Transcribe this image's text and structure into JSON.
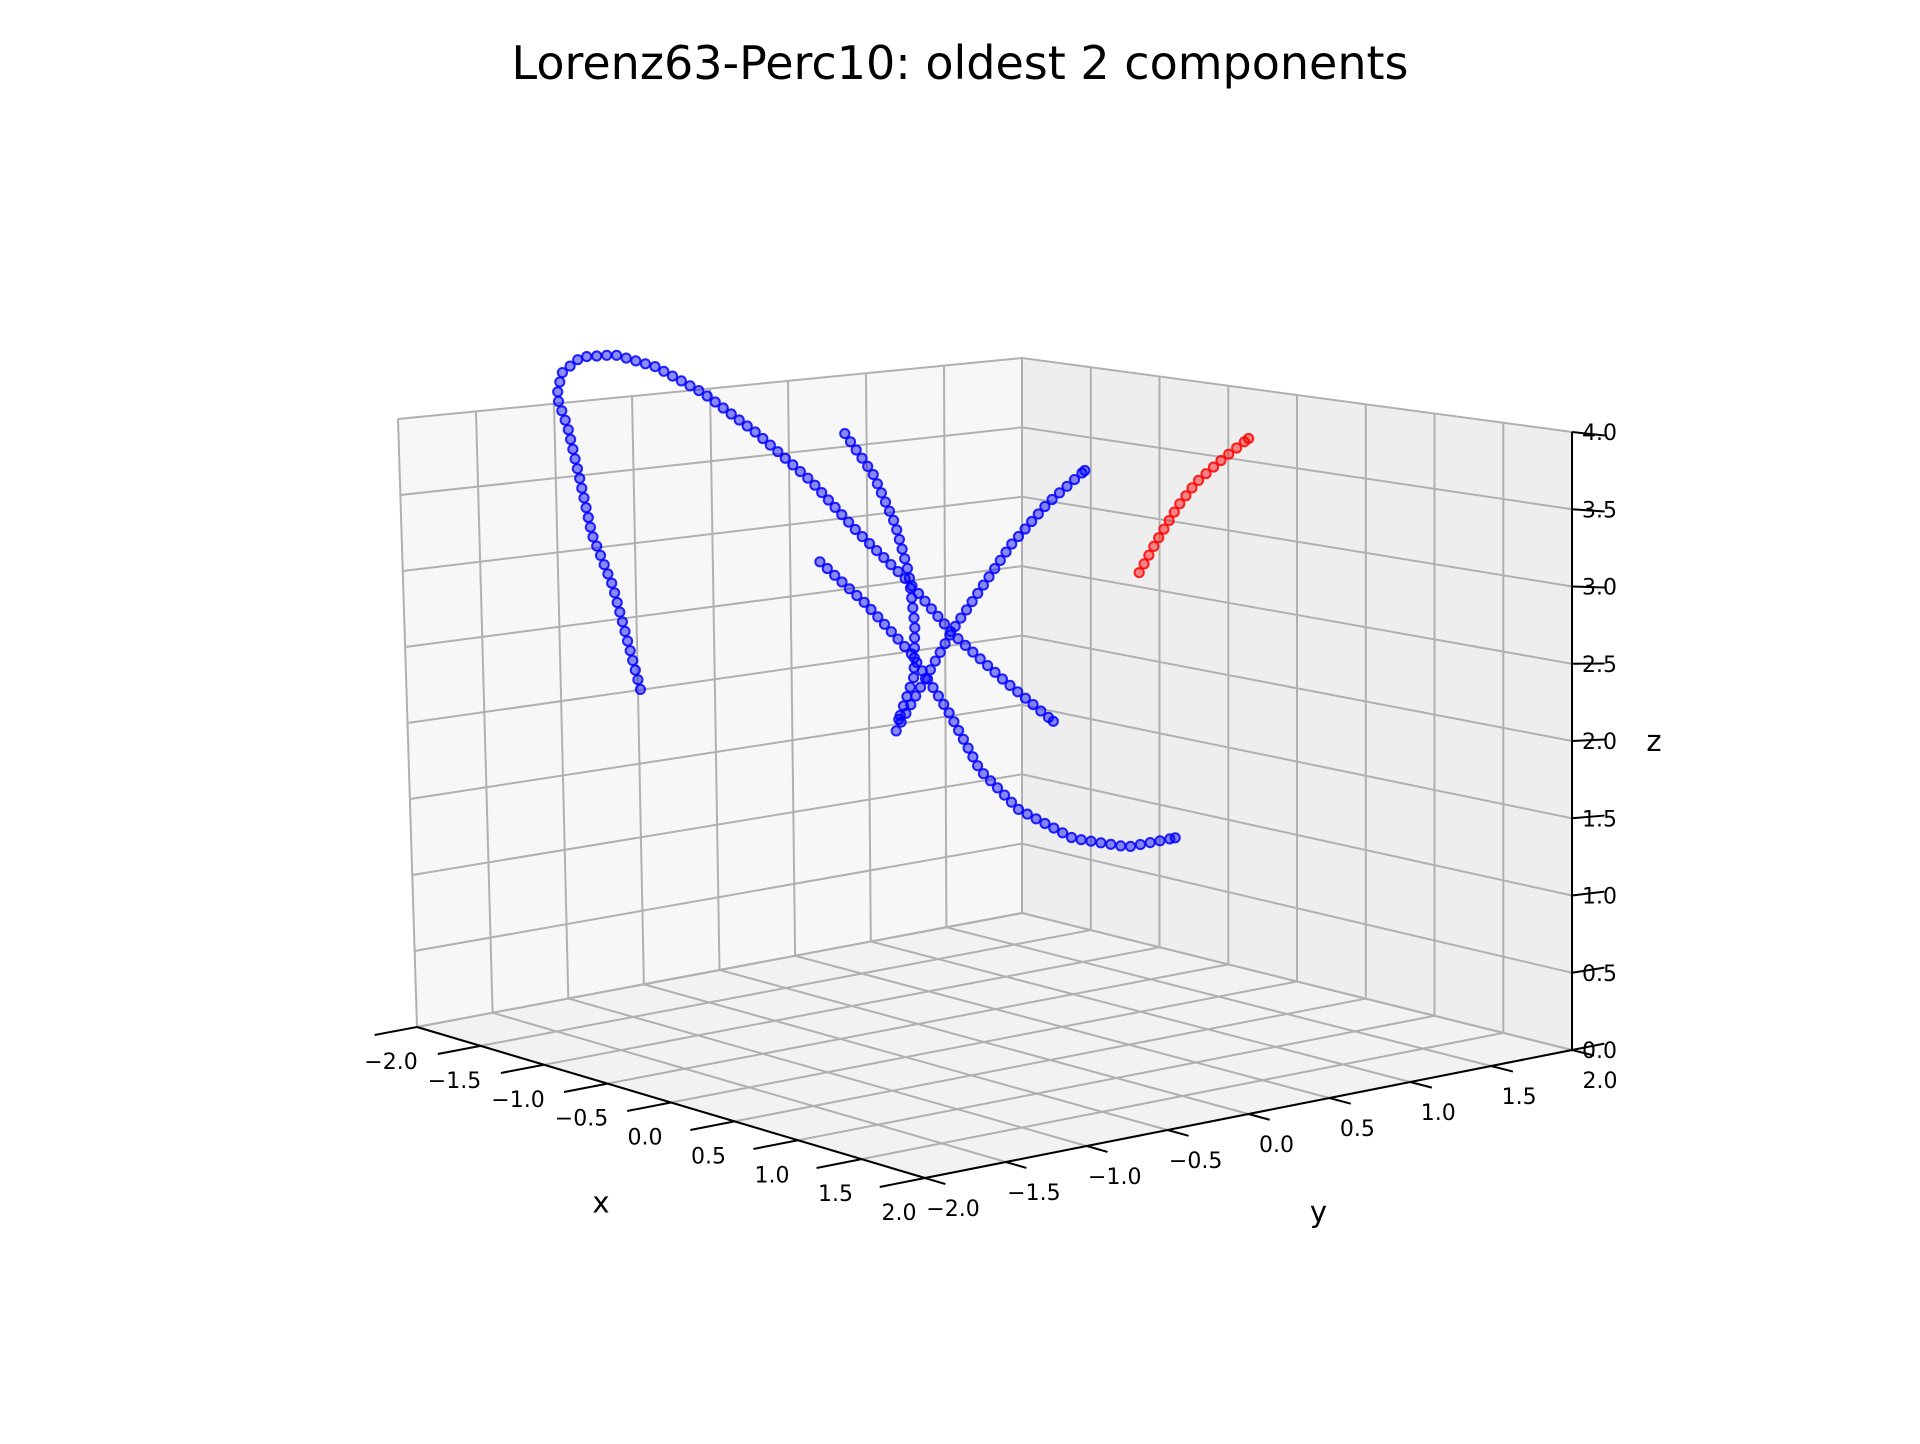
{
  "chart_data": {
    "type": "scatter",
    "title": "Lorenz63-Perc10: oldest 2 components",
    "xlabel": "x",
    "ylabel": "y",
    "zlabel": "z",
    "xlim": [
      -2.0,
      2.0
    ],
    "ylim": [
      -2.0,
      2.0
    ],
    "zlim": [
      0.0,
      4.0
    ],
    "xticks": [
      -2.0,
      -1.5,
      -1.0,
      -0.5,
      0.0,
      0.5,
      1.0,
      1.5,
      2.0
    ],
    "yticks": [
      -2.0,
      -1.5,
      -1.0,
      -0.5,
      0.0,
      0.5,
      1.0,
      1.5,
      2.0
    ],
    "zticks": [
      0.0,
      0.5,
      1.0,
      1.5,
      2.0,
      2.5,
      3.0,
      3.5,
      4.0
    ],
    "xtick_labels": [
      "−2.0",
      "−1.5",
      "−1.0",
      "−0.5",
      "0.0",
      "0.5",
      "1.0",
      "1.5",
      "2.0"
    ],
    "ytick_labels": [
      "−2.0",
      "−1.5",
      "−1.0",
      "−0.5",
      "0.0",
      "0.5",
      "1.0",
      "1.5",
      "2.0"
    ],
    "ztick_labels": [
      "0.0",
      "0.5",
      "1.0",
      "1.5",
      "2.0",
      "2.5",
      "3.0",
      "3.5",
      "4.0"
    ],
    "grid": true,
    "series": [
      {
        "color": "#0000ff",
        "segments": [
          [
            [
              -0.3,
              -1.9,
              2.3
            ],
            [
              -0.4,
              -1.9,
              2.6
            ],
            [
              -0.5,
              -1.9,
              2.9
            ],
            [
              -0.65,
              -1.9,
              3.2
            ],
            [
              -0.8,
              -1.85,
              3.55
            ],
            [
              -1.0,
              -1.75,
              3.85
            ],
            [
              -1.2,
              -1.65,
              4.05
            ],
            [
              -1.4,
              -1.45,
              4.2
            ],
            [
              -1.55,
              -1.2,
              4.3
            ],
            [
              -1.65,
              -0.9,
              4.3
            ],
            [
              -1.7,
              -0.6,
              4.2
            ],
            [
              -1.7,
              -0.3,
              4.0
            ],
            [
              -1.65,
              0.0,
              3.7
            ],
            [
              -1.6,
              0.3,
              3.35
            ],
            [
              -1.5,
              0.5,
              3.0
            ],
            [
              -1.35,
              0.7,
              2.65
            ],
            [
              -1.2,
              0.85,
              2.3
            ],
            [
              -1.0,
              1.0,
              2.0
            ],
            [
              -0.75,
              1.1,
              1.75
            ]
          ],
          [
            [
              -0.4,
              -0.5,
              3.75
            ],
            [
              -0.25,
              -0.45,
              3.5
            ],
            [
              -0.15,
              -0.4,
              3.2
            ],
            [
              -0.05,
              -0.4,
              2.9
            ],
            [
              0.05,
              -0.45,
              2.6
            ],
            [
              0.1,
              -0.5,
              2.3
            ],
            [
              0.1,
              -0.6,
              2.05
            ]
          ],
          [
            [
              0.0,
              -1.0,
              3.0
            ],
            [
              0.1,
              -0.8,
              2.75
            ],
            [
              0.2,
              -0.6,
              2.45
            ],
            [
              0.3,
              -0.45,
              2.1
            ],
            [
              0.35,
              -0.3,
              1.75
            ],
            [
              0.4,
              -0.1,
              1.5
            ],
            [
              0.45,
              0.2,
              1.3
            ],
            [
              0.5,
              0.5,
              1.22
            ],
            [
              0.5,
              0.8,
              1.24
            ]
          ],
          [
            [
              0.2,
              -0.7,
              2.0
            ],
            [
              0.3,
              -0.6,
              2.3
            ],
            [
              0.4,
              -0.5,
              2.6
            ],
            [
              0.5,
              -0.4,
              2.85
            ],
            [
              0.6,
              -0.3,
              3.1
            ],
            [
              0.7,
              -0.15,
              3.35
            ],
            [
              0.8,
              0.0,
              3.55
            ]
          ]
        ]
      },
      {
        "color": "#ff0000",
        "segments": [
          [
            [
              0.9,
              0.25,
              2.95
            ],
            [
              0.92,
              0.35,
              3.15
            ],
            [
              0.95,
              0.45,
              3.35
            ],
            [
              0.97,
              0.55,
              3.5
            ],
            [
              0.99,
              0.7,
              3.65
            ],
            [
              1.0,
              0.85,
              3.78
            ]
          ]
        ]
      }
    ]
  }
}
